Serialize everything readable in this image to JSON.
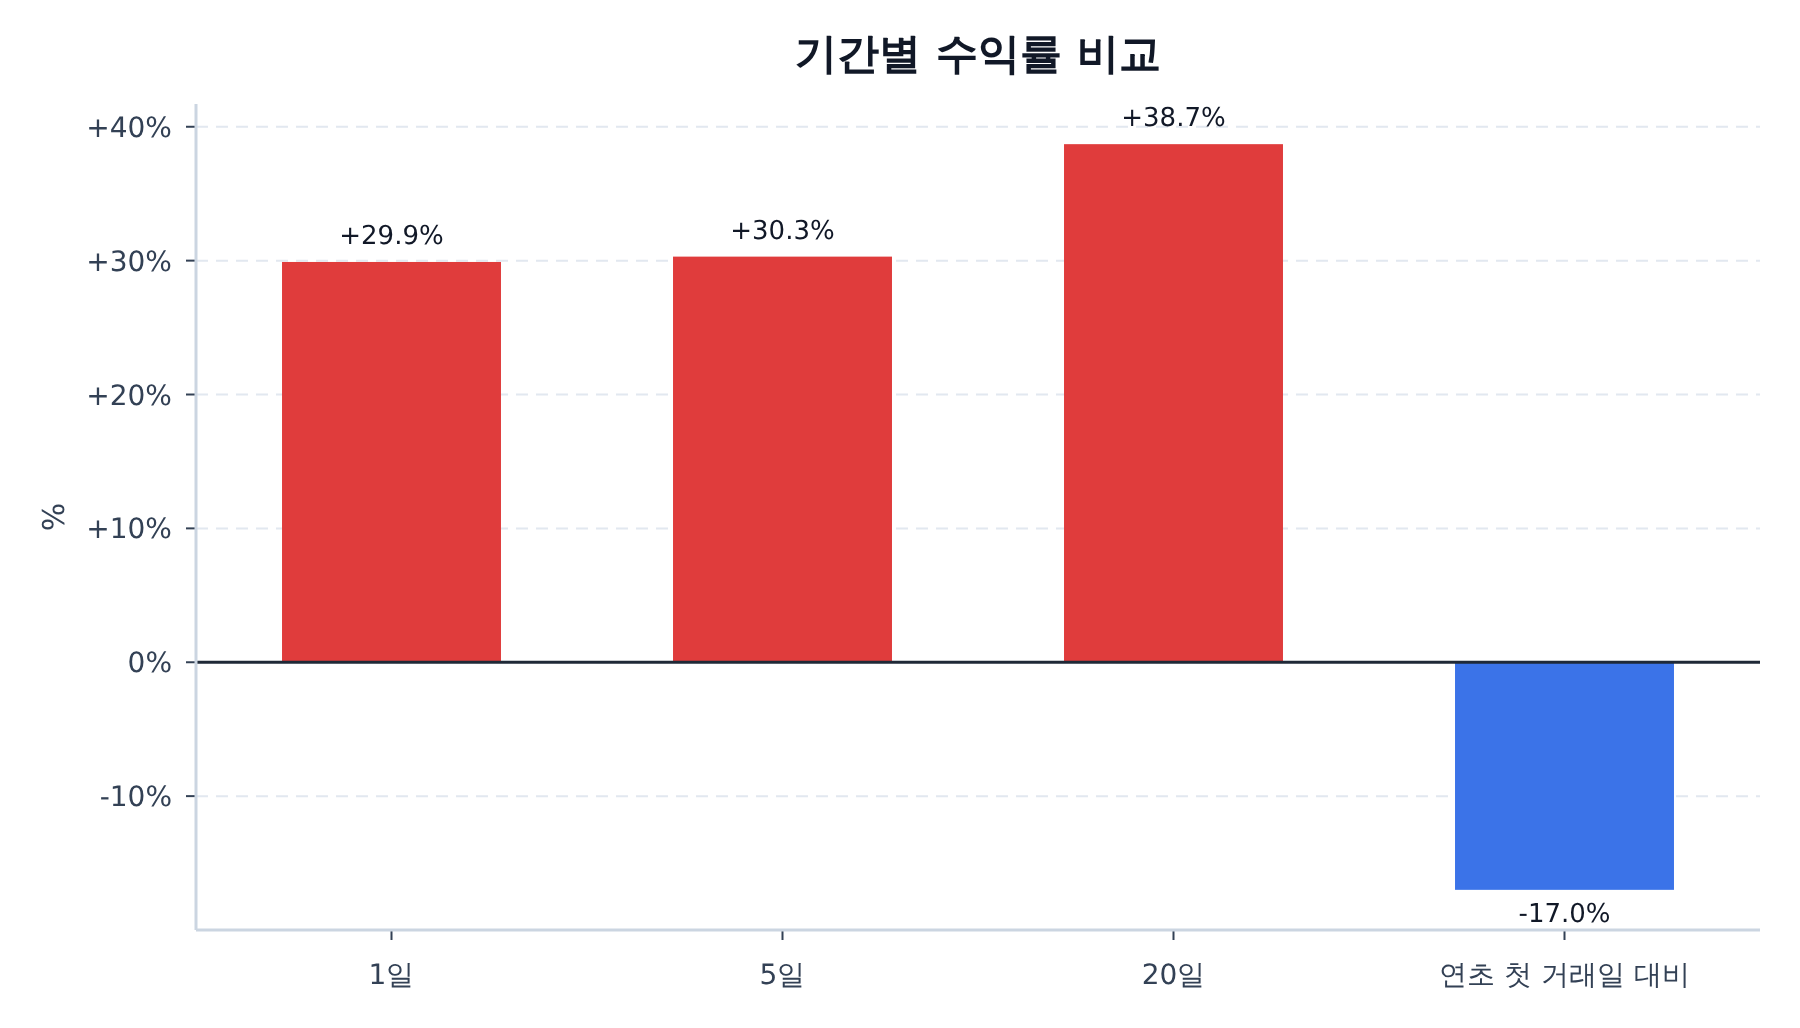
{
  "chart_data": {
    "type": "bar",
    "title": "기간별 수익률 비교",
    "ylabel": "%",
    "categories": [
      "1일",
      "5일",
      "20일",
      "연초 첫 거래일 대비"
    ],
    "values": [
      29.9,
      30.3,
      38.7,
      -17.0
    ],
    "value_labels": [
      "+29.9%",
      "+30.3%",
      "+38.7%",
      "-17.0%"
    ],
    "colors": [
      "#e03c3c",
      "#e03c3c",
      "#e03c3c",
      "#3b73e8"
    ],
    "ylim": [
      -20,
      41.7
    ],
    "yticks": [
      {
        "value": -10,
        "label": "-10%"
      },
      {
        "value": 0,
        "label": "0%"
      },
      {
        "value": 10,
        "label": "+10%"
      },
      {
        "value": 20,
        "label": "+20%"
      },
      {
        "value": 30,
        "label": "+30%"
      },
      {
        "value": 40,
        "label": "+40%"
      }
    ],
    "ref_lines": [
      {
        "axis": "y",
        "value": 0,
        "color": "#1f2937"
      }
    ],
    "grid": "y"
  }
}
